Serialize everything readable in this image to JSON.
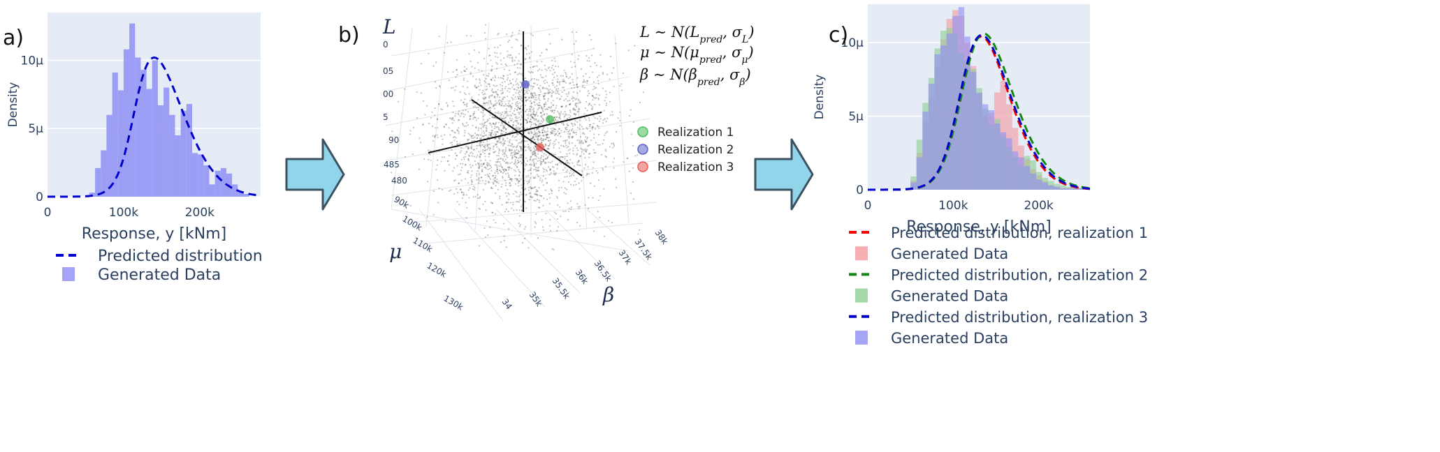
{
  "panels": {
    "a": {
      "letter": "a)"
    },
    "b": {
      "letter": "b)"
    },
    "c": {
      "letter": "c)"
    }
  },
  "colors": {
    "plot_bg": "#e5ecf6",
    "blue_bars": "#8f8ff5",
    "blue_line": "#0000cc",
    "red_bars": "#f49a9f",
    "green_bars": "#8fce94",
    "red_line": "#ff0000",
    "green_line": "#118811",
    "arrow_fill": "#91d5ea",
    "arrow_stroke": "#3b5160",
    "real1": "#4cbb5a",
    "real2": "#5f63c7",
    "real3": "#e55b55"
  },
  "chart_data": [
    {
      "type": "bar",
      "panel": "a)",
      "xlabel": "Response, y  [kNm]",
      "ylabel": "Density",
      "xlim": [
        0,
        280000
      ],
      "ylim": [
        0,
        13.5
      ],
      "x_ticks": [
        {
          "v": 0,
          "label": "0"
        },
        {
          "v": 100000,
          "label": "100k"
        },
        {
          "v": 200000,
          "label": "200k"
        }
      ],
      "y_ticks": [
        {
          "v": 0,
          "label": "0"
        },
        {
          "v": 5,
          "label": "5μ"
        },
        {
          "v": 10,
          "label": "10μ"
        }
      ],
      "bin_start": 55000,
      "bin_width": 7500,
      "values": [
        0.3,
        2.1,
        3.4,
        6.0,
        9.1,
        7.8,
        10.8,
        12.7,
        10.2,
        9.3,
        7.9,
        10.0,
        6.7,
        8.0,
        6.0,
        4.5,
        6.3,
        6.8,
        3.2,
        3.1,
        2.3,
        0.9,
        1.9,
        2.1,
        1.7,
        0.9,
        0.4,
        0.2
      ],
      "curve": {
        "mean": 115000,
        "sd": 52000,
        "peak": 10.2,
        "skew": 4.2
      },
      "legend": [
        {
          "name": "Predicted distribution",
          "kind": "dash",
          "color": "#0000cc"
        },
        {
          "name": "Generated Data",
          "kind": "box",
          "color": "#8f8ff5"
        }
      ]
    },
    {
      "type": "scatter",
      "panel": "b)",
      "axis_names": {
        "L": "L",
        "mu": "μ",
        "beta": "β"
      },
      "L_ticks": [
        "0",
        "05",
        "00",
        "5",
        "90",
        "485",
        "480"
      ],
      "mu_ticks": [
        "90k",
        "100k",
        "110k",
        "120k",
        "130k"
      ],
      "beta_ticks": [
        "34",
        "35k",
        "35.5k",
        "36k",
        "36.5k",
        "37k",
        "37.5k",
        "38k"
      ],
      "equations": [
        {
          "lhs": "L",
          "rhs": "∼ N(L",
          "sub": "pred",
          "mid": ", σ",
          "sub2": "L",
          "end": ")"
        },
        {
          "lhs": "μ",
          "rhs": "∼ N(μ",
          "sub": "pred",
          "mid": ", σ",
          "sub2": "μ",
          "end": ")"
        },
        {
          "lhs": "β",
          "rhs": "∼ N(β",
          "sub": "pred",
          "mid": ", σ",
          "sub2": "β",
          "end": ")"
        }
      ],
      "legend": [
        {
          "name": "Realization 1",
          "color": "#4cbb5a"
        },
        {
          "name": "Realization 2",
          "color": "#5f63c7"
        },
        {
          "name": "Realization 3",
          "color": "#e55b55"
        }
      ]
    },
    {
      "type": "bar",
      "panel": "c)",
      "xlabel": "Response, y  [kNm]",
      "ylabel": "Density",
      "xlim": [
        0,
        260000
      ],
      "ylim": [
        0,
        12.6
      ],
      "x_ticks": [
        {
          "v": 0,
          "label": "0"
        },
        {
          "v": 100000,
          "label": "100k"
        },
        {
          "v": 200000,
          "label": "200k"
        }
      ],
      "y_ticks": [
        {
          "v": 0,
          "label": "0"
        },
        {
          "v": 5,
          "label": "5μ"
        },
        {
          "v": 10,
          "label": "10μ"
        }
      ],
      "bin_start": 50000,
      "bin_width": 7000,
      "series": [
        {
          "name": "Generated Data",
          "realization": 1,
          "color": "#f49a9f",
          "values": [
            0.6,
            2.5,
            4.6,
            6.2,
            8.3,
            10.2,
            11.6,
            12.2,
            11.8,
            10.0,
            8.4,
            6.5,
            5.0,
            5.2,
            6.6,
            7.4,
            5.8,
            4.2,
            3.0,
            2.1,
            1.4,
            1.0,
            0.6,
            0.3,
            0.2,
            0.1,
            0.1,
            0.1,
            0.1
          ]
        },
        {
          "name": "Generated Data",
          "realization": 2,
          "color": "#8fce94",
          "values": [
            0.9,
            3.4,
            5.9,
            7.6,
            9.6,
            10.8,
            11.0,
            10.6,
            9.3,
            8.8,
            8.2,
            6.9,
            5.5,
            4.4,
            4.8,
            3.6,
            2.9,
            2.2,
            1.6,
            2.3,
            2.0,
            1.2,
            0.8,
            0.6,
            0.4,
            0.3,
            0.2,
            0.1,
            0.1
          ]
        },
        {
          "name": "Generated Data",
          "realization": 3,
          "color": "#8f8ff5",
          "values": [
            0.5,
            2.2,
            5.3,
            7.2,
            9.2,
            9.8,
            10.6,
            11.8,
            12.4,
            10.4,
            8.0,
            6.6,
            5.8,
            5.4,
            4.5,
            3.9,
            3.5,
            2.6,
            2.2,
            1.6,
            1.1,
            0.7,
            0.5,
            0.3,
            0.2,
            0.1,
            0.1,
            0.1,
            0.1
          ]
        }
      ],
      "curves": [
        {
          "name": "Predicted distribution, realization 1",
          "color": "#ff0000",
          "mean": 110000,
          "sd": 45000,
          "peak": 10.4,
          "skew": 3.5
        },
        {
          "name": "Predicted distribution, realization 2",
          "color": "#118811",
          "mean": 112000,
          "sd": 47000,
          "peak": 10.6,
          "skew": 3.5
        },
        {
          "name": "Predicted distribution, realization 3",
          "color": "#0000cc",
          "mean": 110000,
          "sd": 46000,
          "peak": 10.5,
          "skew": 3.5
        }
      ],
      "legend": [
        {
          "name": "Predicted distribution, realization 1",
          "kind": "dash",
          "color": "#ff0000"
        },
        {
          "name": "Generated Data",
          "kind": "box",
          "color": "#f49a9f"
        },
        {
          "name": "Predicted distribution, realization 2",
          "kind": "dash",
          "color": "#118811"
        },
        {
          "name": "Generated Data",
          "kind": "box",
          "color": "#8fce94"
        },
        {
          "name": "Predicted distribution, realization 3",
          "kind": "dash",
          "color": "#0000cc"
        },
        {
          "name": "Generated Data",
          "kind": "box",
          "color": "#8f8ff5"
        }
      ]
    }
  ]
}
